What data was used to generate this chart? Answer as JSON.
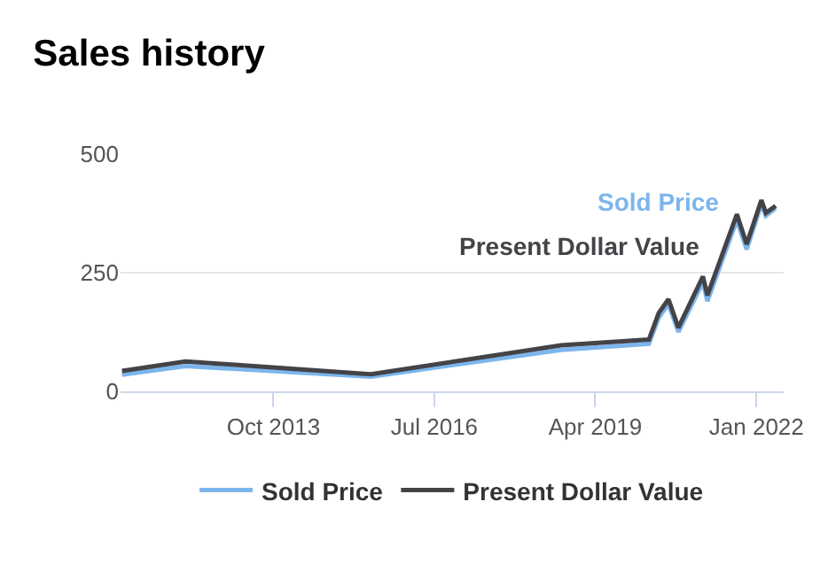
{
  "chart_data": {
    "type": "line",
    "title": "Sales history",
    "x": [
      "2011-03",
      "2012-04",
      "2015-06",
      "2018-09",
      "2020-03",
      "2020-05",
      "2020-07",
      "2020-09",
      "2021-02",
      "2021-03",
      "2021-09",
      "2021-11",
      "2022-02",
      "2022-03",
      "2022-05"
    ],
    "series": [
      {
        "name": "Sold Price",
        "color": "#7cb5ec",
        "values": [
          35,
          53,
          31,
          87,
          100,
          155,
          184,
          125,
          230,
          190,
          361,
          299,
          395,
          370,
          386
        ]
      },
      {
        "name": "Present Dollar Value",
        "color": "#434348",
        "values": [
          43,
          63,
          36,
          97,
          109,
          165,
          194,
          134,
          242,
          202,
          373,
          310,
          403,
          376,
          391
        ]
      }
    ],
    "xlim": [
      "2011-02-20",
      "2022-06-20"
    ],
    "xticks": [
      {
        "value": "2013-10-01",
        "label": "Oct 2013"
      },
      {
        "value": "2016-07-01",
        "label": "Jul 2016"
      },
      {
        "value": "2019-04-01",
        "label": "Apr 2019"
      },
      {
        "value": "2022-01-01",
        "label": "Jan 2022"
      }
    ],
    "ylim": [
      0,
      500
    ],
    "yticks": [
      0,
      250,
      500
    ],
    "grid": "y",
    "legend": "bottom",
    "marker": "none",
    "line_style": "solid"
  }
}
